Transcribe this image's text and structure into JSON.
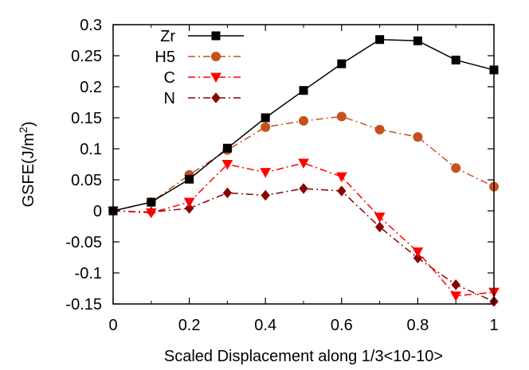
{
  "chart_data": {
    "type": "line",
    "xlabel": "Scaled Displacement along 1/3<10-10>",
    "ylabel_prefix": "GSFE(J/m",
    "ylabel_sup": "2",
    "ylabel_suffix": ")",
    "xlim": [
      0,
      1
    ],
    "ylim": [
      -0.15,
      0.3
    ],
    "x_ticks": [
      0,
      0.2,
      0.4,
      0.6,
      0.8,
      1
    ],
    "x_tick_labels": [
      "0",
      "0.2",
      "0.4",
      "0.6",
      "0.8",
      "1"
    ],
    "y_ticks": [
      -0.15,
      -0.1,
      -0.05,
      0,
      0.05,
      0.1,
      0.15,
      0.2,
      0.25,
      0.3
    ],
    "y_tick_labels": [
      "-0.15",
      "-0.1",
      "-0.05",
      "0",
      "0.05",
      "0.1",
      "0.15",
      "0.2",
      "0.25",
      "0.3"
    ],
    "grid": false,
    "legend_position": "top-left",
    "x": [
      0,
      0.1,
      0.2,
      0.3,
      0.4,
      0.5,
      0.6,
      0.7,
      0.8,
      0.9,
      1.0
    ],
    "series": [
      {
        "name": "Zr",
        "color": "#000000",
        "dash": "solid",
        "marker": "square",
        "values": [
          0,
          0.014,
          0.051,
          0.101,
          0.15,
          0.194,
          0.237,
          0.276,
          0.274,
          0.243,
          0.227
        ]
      },
      {
        "name": "H5",
        "color": "#c8501a",
        "dash": "dashdot",
        "marker": "circle",
        "values": [
          0,
          0.014,
          0.058,
          0.098,
          0.135,
          0.145,
          0.152,
          0.131,
          0.119,
          0.069,
          0.039
        ]
      },
      {
        "name": "C",
        "color": "#ff0000",
        "dash": "dashdot",
        "marker": "triangle-down",
        "values": [
          0,
          -0.003,
          0.014,
          0.075,
          0.062,
          0.077,
          0.055,
          -0.01,
          -0.066,
          -0.137,
          -0.131
        ]
      },
      {
        "name": "N",
        "color": "#8b0000",
        "dash": "dashdot",
        "marker": "diamond",
        "values": [
          0,
          -0.002,
          0.004,
          0.029,
          0.025,
          0.036,
          0.032,
          -0.026,
          -0.076,
          -0.119,
          -0.146
        ]
      }
    ]
  }
}
